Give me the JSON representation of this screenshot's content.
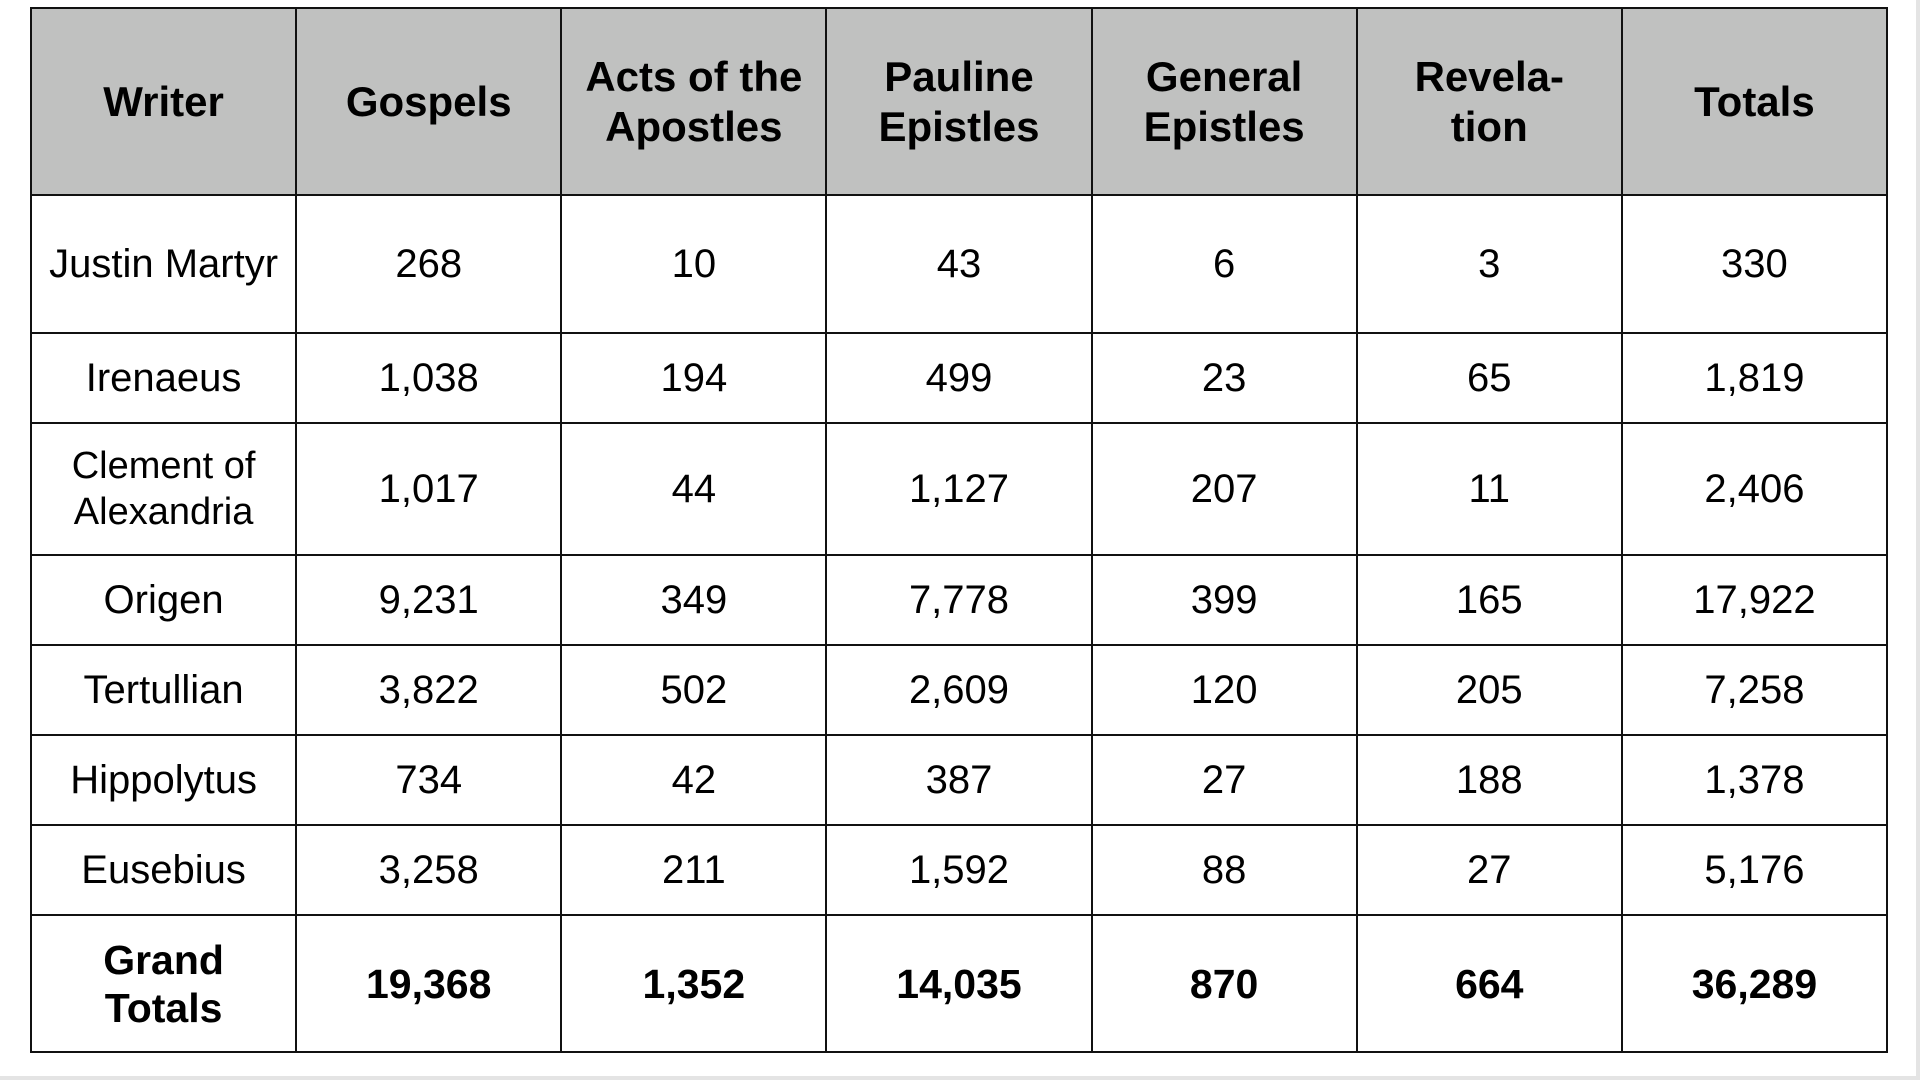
{
  "headers": [
    "Writer",
    "Gospels",
    "Acts of the Apostles",
    "Pauline Epistles",
    "General Epistles",
    "Revela-tion",
    "Totals"
  ],
  "rows": [
    [
      "Justin Martyr",
      "268",
      "10",
      "43",
      "6",
      "3",
      "330"
    ],
    [
      "Irenaeus",
      "1,038",
      "194",
      "499",
      "23",
      "65",
      "1,819"
    ],
    [
      "Clement of Alexandria",
      "1,017",
      "44",
      "1,127",
      "207",
      "11",
      "2,406"
    ],
    [
      "Origen",
      "9,231",
      "349",
      "7,778",
      "399",
      "165",
      "17,922"
    ],
    [
      "Tertullian",
      "3,822",
      "502",
      "2,609",
      "120",
      "205",
      "7,258"
    ],
    [
      "Hippolytus",
      "734",
      "42",
      "387",
      "27",
      "188",
      "1,378"
    ],
    [
      "Eusebius",
      "3,258",
      "211",
      "1,592",
      "88",
      "27",
      "5,176"
    ]
  ],
  "totals": [
    "Grand Totals",
    "19,368",
    "1,352",
    "14,035",
    "870",
    "664",
    "36,289"
  ]
}
